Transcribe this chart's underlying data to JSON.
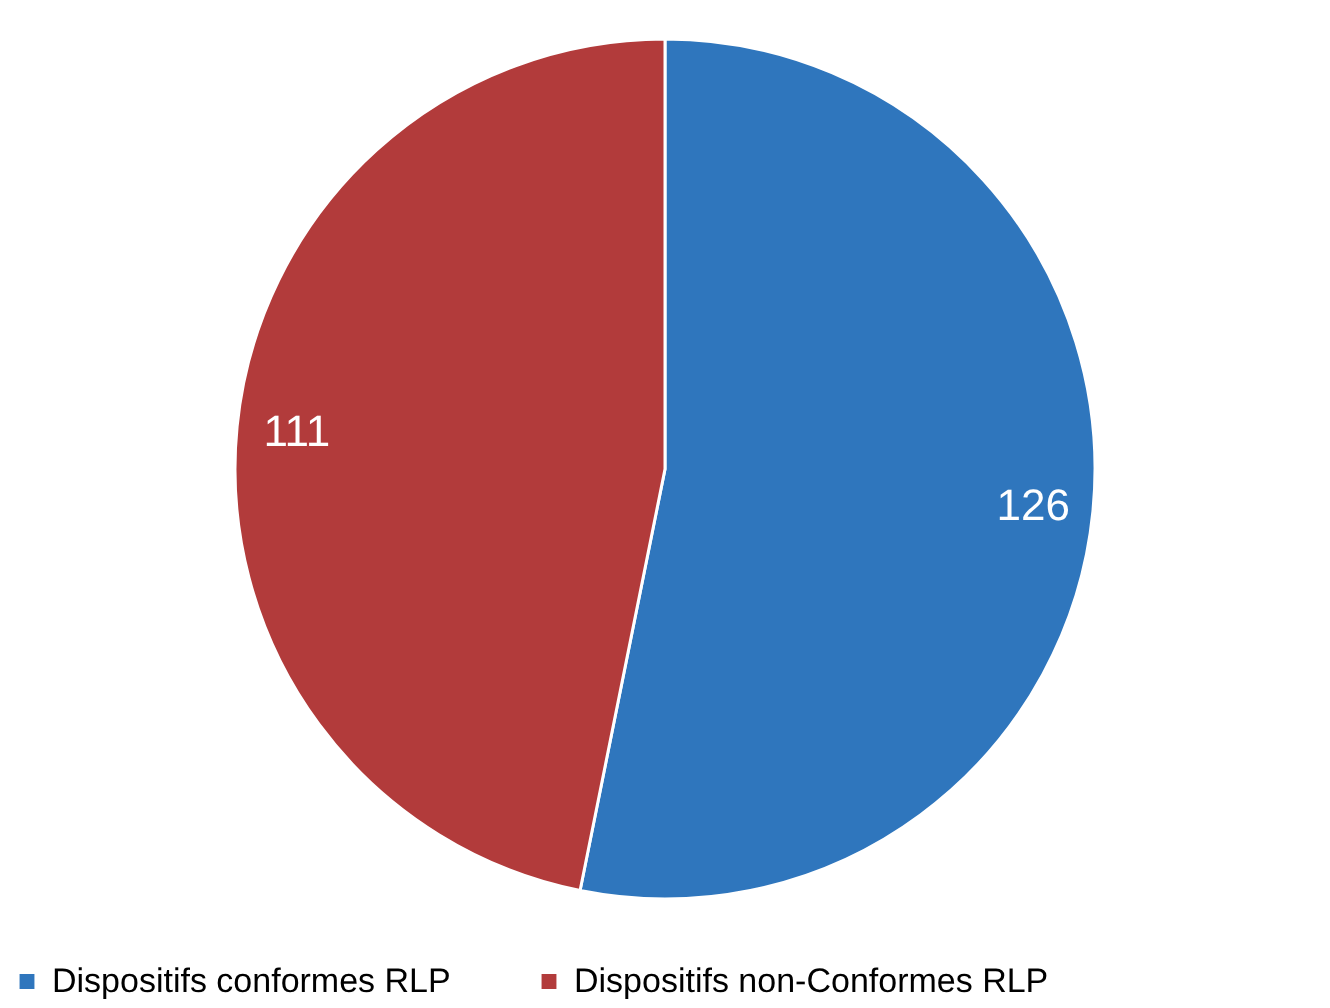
{
  "chart_data": {
    "type": "pie",
    "categories": [
      "Dispositifs conformes RLP",
      "Dispositifs non-Conformes RLP"
    ],
    "values": [
      126,
      111
    ],
    "colors": [
      "#2f76bd",
      "#b23b3b"
    ],
    "data_labels": true,
    "legend": "bottom"
  }
}
